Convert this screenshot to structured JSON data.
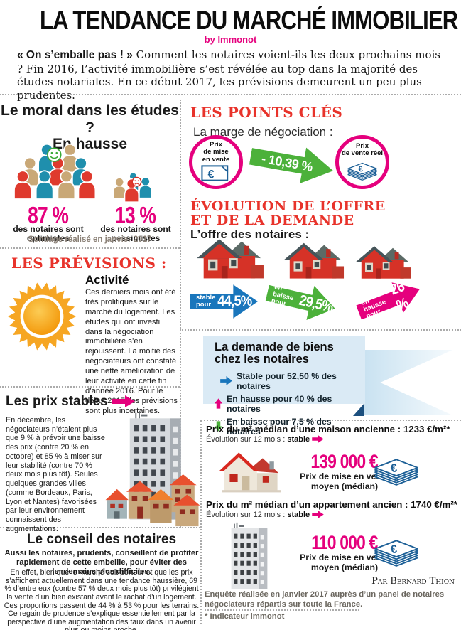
{
  "colors": {
    "accent_pink": "#e5007d",
    "heading_red": "#e8332b",
    "arrow_blue": "#1976bc",
    "arrow_green": "#4cb13a",
    "money_navy": "#1d6097",
    "demand_box_blue": "#daeaf5",
    "note_gray": "#6b675f"
  },
  "icons": {
    "smiley": "happy-face in optimistic crowd",
    "sad_face": "sad-face in pessimistic crowd",
    "sun": "sun with rays (good activity forecast)",
    "banknote": "euro banknote",
    "money_stack": "stack of euro banknotes",
    "house": "red house",
    "tower": "apartment tower",
    "arrow_right": "stable",
    "arrow_up": "increase",
    "arrow_down": "decrease"
  },
  "header": {
    "title": "LA TENDANCE DU MARCHÉ IMMOBILIER",
    "byline": "by Immonot",
    "intro_lead": "« On s’emballe pas ! »",
    "intro_text": "Comment les notaires voient-ils les deux prochains mois ? Fin 2016, l’activité immobilière s’est révélée au top dans la majorité des études notariales. En ce début 2017, les prévisions demeurent un peu plus prudentes."
  },
  "moral": {
    "title_line1": "Le moral dans les études ?",
    "title_line2": "En hausse",
    "optimistic": {
      "value": "87 %",
      "label": "des notaires sont",
      "sublabel": "optimistes"
    },
    "pessimistic": {
      "value": "13 %",
      "label": "des notaires sont",
      "sublabel": "pessimistes"
    },
    "footnote": "Sondage réalisé en janvier 2017"
  },
  "key_points": {
    "title": "LES POINTS CLÉS",
    "negotiation": {
      "label": "La marge de négociation :",
      "from_line1": "Prix",
      "from_line2": "de mise",
      "from_line3": "en vente",
      "delta": "- 10,39 %",
      "to_line1": "Prix",
      "to_line2": "de vente réel"
    },
    "evolution_line1": "ÉVOLUTION DE L’OFFRE",
    "evolution_line2": "ET DE LA DEMANDE",
    "offer": {
      "label": "L’offre des notaires :",
      "arrows": [
        {
          "state": "stable",
          "line1": "stable",
          "line2": "pour",
          "value": "44,5%"
        },
        {
          "state": "en baisse",
          "line1": "en baisse",
          "line2": "pour",
          "value": "29,5%"
        },
        {
          "state": "en hausse",
          "line1": "en hausse",
          "line2": "pour",
          "value": "26 %"
        }
      ]
    },
    "demand": {
      "title_line1": "La demande de biens",
      "title_line2": "chez les notaires",
      "items": [
        {
          "direction": "stable",
          "text": "Stable pour 52,50 % des notaires"
        },
        {
          "direction": "hausse",
          "text": "En hausse pour 40 % des notaires"
        },
        {
          "direction": "baisse",
          "text": "En baisse pour 7,5 % des notaires"
        }
      ]
    }
  },
  "previsions": {
    "title": "LES PRÉVISIONS :",
    "subtitle": "Activité",
    "text": "Ces derniers mois ont été très prolifiques sur le marché du logement. Les études qui ont investi dans la négociation immobilière s’en réjouissent. La moitié des négociateurs ont constaté une nette amélioration de leur activité en cette fin d’année 2016. Pour le début 2017, les prévisions sont plus incertaines."
  },
  "prix_stables": {
    "title": "Les prix stables",
    "text": "En décembre, les négociateurs n’étaient plus que 9 % à prévoir une baisse des prix (contre 20 % en octobre) et 85 % à miser sur leur stabilité (contre 70 % deux mois plus tôt). Seules quelques grandes villes (comme Bordeaux, Paris, Lyon et Nantes) favorisées par leur environnement connaissent des augmentations."
  },
  "conseil": {
    "title": "Le conseil des notaires",
    "lead": "Aussi les notaires, prudents, conseillent de profiter rapidement de cette embellie, pour éviter des lendemains plus difficiles.",
    "text": "En effet, bien que le marché soit porteur et que les prix s’affichent actuellement dans une tendance haussière, 69 % d’entre eux (contre 57 % deux mois plus tôt) privilégient la vente d’un bien existant avant le rachat d’un logement. Ces proportions passent de 44 % à 53 % pour les terrains. Ce regain de prudence s’explique essentiellement par la perspective d’une augmentation des taux dans un avenir plus ou moins proche."
  },
  "prices": {
    "maison": {
      "title": "Prix du m² médian d’une maison ancienne : 1233 €/m²*",
      "evolution_label": "Évolution sur 12 mois :",
      "evolution_value": "stable",
      "price": "139 000 €",
      "caption_line1": "Prix de mise en vente",
      "caption_line2": "moyen (médian)"
    },
    "appartement": {
      "title": "Prix du m² médian d’un appartement ancien : 1740 €/m²*",
      "evolution_label": "Évolution sur 12 mois :",
      "evolution_value": "stable",
      "price": "110 000 €",
      "caption_line1": "Prix de mise en vente",
      "caption_line2": "moyen (médian)"
    },
    "author": "Par Bernard Thion",
    "survey_note": "Enquête réalisée en janvier 2017 auprès d’un panel de notaires négociateurs répartis sur toute la France.",
    "footnote": "* Indicateur immonot"
  }
}
